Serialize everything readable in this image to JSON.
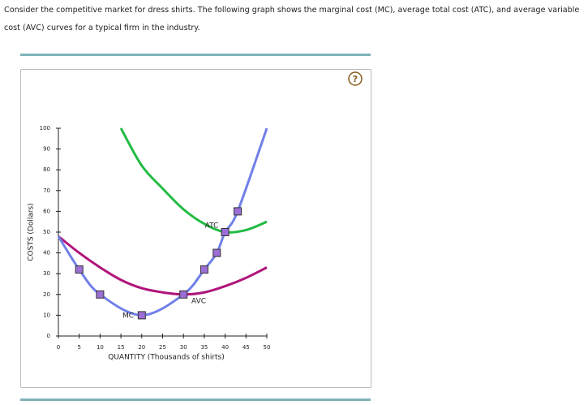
{
  "prompt": "Consider the competitive market for dress shirts. The following graph shows the marginal cost (MC), average total cost (ATC), and average variable cost (AVC) curves for a typical firm in the industry.",
  "help": "?",
  "chart_data": {
    "type": "line",
    "x_label": "QUANTITY (Thousands of shirts)",
    "y_label": "COSTS (Dollars)",
    "xlim": [
      0,
      50
    ],
    "xticks": [
      0,
      5,
      10,
      15,
      20,
      25,
      30,
      35,
      40,
      45,
      50
    ],
    "ylim": [
      0,
      100
    ],
    "yticks": [
      0,
      10,
      20,
      30,
      40,
      50,
      60,
      70,
      80,
      90,
      100
    ],
    "grid": false,
    "series": [
      {
        "name": "ATC",
        "color": "#22bb44",
        "x": [
          15,
          20,
          25,
          30,
          35,
          40,
          45,
          50
        ],
        "values": [
          100,
          82,
          71,
          61,
          54,
          50,
          51,
          55
        ]
      },
      {
        "name": "AVC",
        "color": "#b0157a",
        "x": [
          0,
          5,
          10,
          15,
          20,
          25,
          30,
          35,
          40,
          45,
          50
        ],
        "values": [
          48,
          40,
          33,
          27,
          23,
          21,
          20,
          21,
          24,
          28,
          33
        ]
      },
      {
        "name": "MC",
        "color": "#7080e8",
        "x": [
          0,
          5,
          10,
          20,
          30,
          35,
          38,
          40,
          43,
          50
        ],
        "values": [
          48,
          32,
          20,
          10,
          20,
          32,
          40,
          50,
          60,
          100
        ]
      }
    ]
  }
}
